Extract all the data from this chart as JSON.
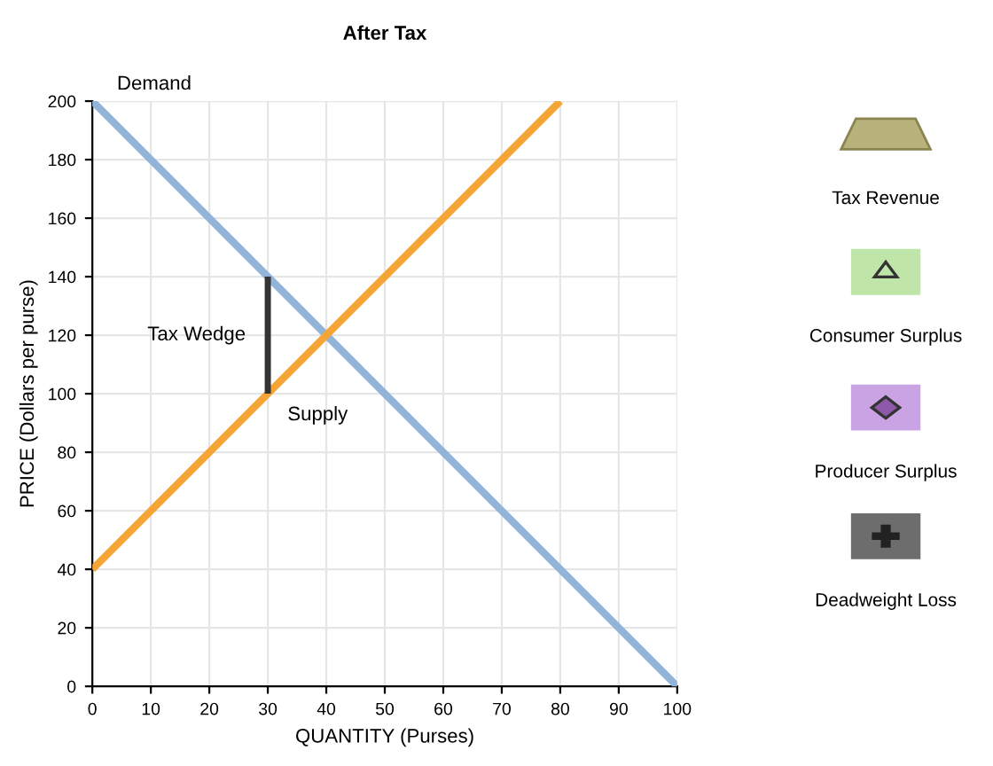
{
  "chart_data": {
    "type": "line",
    "title": "After Tax",
    "xlabel": "QUANTITY (Purses)",
    "ylabel": "PRICE (Dollars per purse)",
    "series": [
      {
        "name": "Demand",
        "color": "#92b4d8",
        "x": [
          0,
          100
        ],
        "values": [
          200,
          0
        ]
      },
      {
        "name": "Supply",
        "color": "#f5a536",
        "x": [
          0,
          80
        ],
        "values": [
          40,
          200
        ]
      },
      {
        "name": "Tax Wedge",
        "color": "#333333",
        "x": [
          30,
          30
        ],
        "values": [
          100,
          140
        ]
      }
    ],
    "xlim": [
      0,
      100
    ],
    "xticks": [
      0,
      10,
      20,
      30,
      40,
      50,
      60,
      70,
      80,
      90,
      100
    ],
    "ylim": [
      0,
      200
    ],
    "yticks": [
      0,
      20,
      40,
      60,
      80,
      100,
      120,
      140,
      160,
      180,
      200
    ],
    "grid": true,
    "marker": "none",
    "line_style": "solid",
    "legend": false,
    "annotations": [
      "Tax Revenue",
      "Consumer Surplus",
      "Producer Surplus",
      "Deadweight Loss"
    ]
  }
}
